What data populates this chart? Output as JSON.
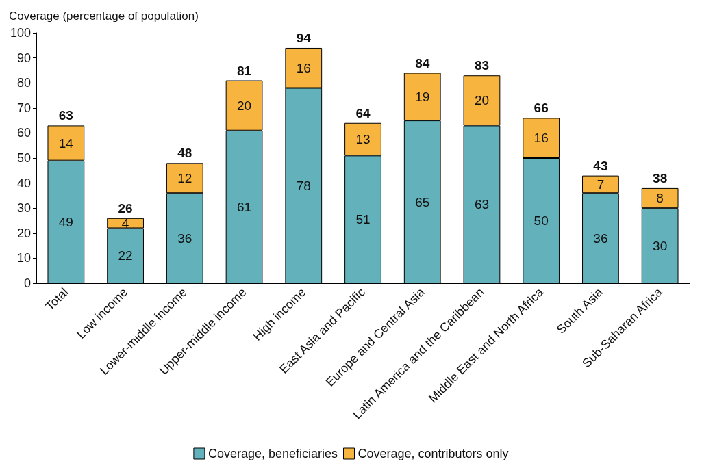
{
  "chart_data": {
    "type": "bar",
    "ylabel": "Coverage (percentage of population)",
    "categories": [
      "Total",
      "Low income",
      "Lower-middle income",
      "Upper-middle income",
      "High income",
      "East Asia and Pacific",
      "Europe and Central Asia",
      "Latin America and the Caribbean",
      "Middle East and North Africa",
      "South Asia",
      "Sub-Saharan Africa"
    ],
    "series": [
      {
        "name": "Coverage, beneficiaries",
        "color": "#62b1bb",
        "values": [
          49,
          22,
          36,
          61,
          78,
          51,
          65,
          63,
          50,
          36,
          30
        ]
      },
      {
        "name": "Coverage, contributors only",
        "color": "#f7b53f",
        "values": [
          14,
          4,
          12,
          20,
          16,
          13,
          19,
          20,
          16,
          7,
          8
        ]
      }
    ],
    "stacked": true,
    "data_labels": true,
    "totals": [
      "63",
      "26",
      "48",
      "81",
      "94",
      "64",
      "84",
      "83",
      "66",
      "43",
      "38"
    ],
    "ylim": [
      0,
      100
    ],
    "yticks": [
      0,
      10,
      20,
      30,
      40,
      50,
      60,
      70,
      80,
      90,
      100
    ],
    "grid": false,
    "legend": "bottom"
  }
}
